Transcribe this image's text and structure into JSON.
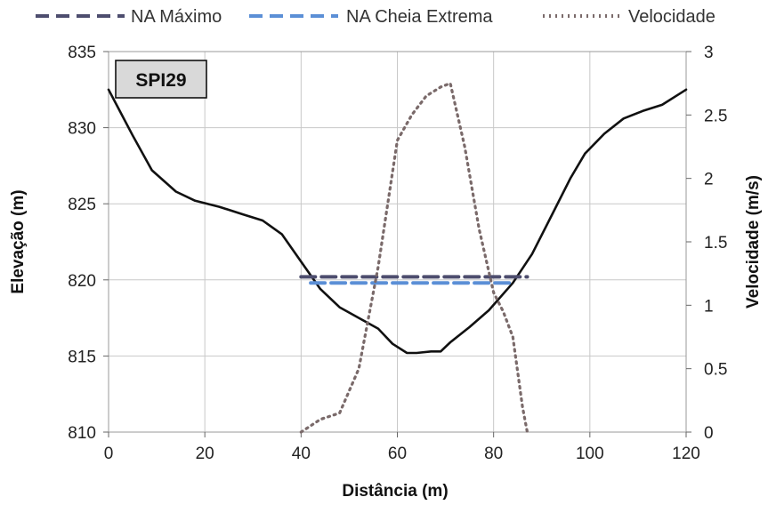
{
  "chart_data": {
    "type": "line",
    "label_box": "SPI29",
    "xlabel": "Distância (m)",
    "ylabel": "Elevação (m)",
    "y2label": "Velocidade (m/s)",
    "xlim": [
      0,
      120
    ],
    "ylim": [
      810,
      835
    ],
    "y2lim": [
      0,
      3
    ],
    "xticks": [
      0,
      20,
      40,
      60,
      80,
      100,
      120
    ],
    "yticks": [
      810,
      815,
      820,
      825,
      830,
      835
    ],
    "y2ticks": [
      0,
      0.5,
      1,
      1.5,
      2,
      2.5,
      3
    ],
    "y2ticklabels": [
      "0",
      "0.5",
      "1",
      "1.5",
      "2",
      "2.5",
      "3"
    ],
    "grid": true,
    "legend_position": "top",
    "legend": [
      {
        "label": "NA Máximo",
        "color": "#4d4d6e",
        "style": "dashed"
      },
      {
        "label": "NA Cheia Extrema",
        "color": "#5b8fd6",
        "style": "dashed"
      },
      {
        "label": "Velocidade",
        "color": "#7a6a6a",
        "style": "dotted"
      }
    ],
    "colors": {
      "terrain": "#111111",
      "na_max": "#4d4d6e",
      "na_cheia": "#5b8fd6",
      "velocidade": "#7a6a6a"
    },
    "series": [
      {
        "axis": "y",
        "x": [
          0,
          5,
          9,
          14,
          18,
          23,
          28,
          32,
          36,
          40,
          44,
          48,
          52,
          56,
          59,
          62,
          64,
          67,
          69,
          71,
          75,
          79,
          84,
          88,
          92,
          96,
          99,
          103,
          107,
          111,
          115,
          120
        ],
        "values": [
          832.5,
          829.5,
          827.2,
          825.8,
          825.2,
          824.8,
          824.3,
          823.9,
          823.0,
          821.2,
          819.4,
          818.2,
          817.5,
          816.8,
          815.8,
          815.2,
          815.2,
          815.3,
          815.3,
          815.9,
          816.9,
          818.0,
          819.8,
          821.7,
          824.2,
          826.7,
          828.3,
          829.6,
          830.6,
          831.1,
          831.5,
          832.5
        ]
      },
      {
        "name": "NA Máximo",
        "axis": "y",
        "x": [
          40,
          87
        ],
        "values": [
          820.2,
          820.2
        ]
      },
      {
        "name": "NA Cheia Extrema",
        "axis": "y",
        "x": [
          42,
          84
        ],
        "values": [
          819.8,
          819.8
        ]
      },
      {
        "name": "Velocidade",
        "axis": "y2",
        "x": [
          40,
          44,
          48,
          52,
          56,
          60,
          63,
          66,
          69,
          71,
          74,
          77,
          80,
          82,
          84,
          86,
          87
        ],
        "values": [
          0.0,
          0.1,
          0.15,
          0.5,
          1.3,
          2.3,
          2.5,
          2.65,
          2.72,
          2.75,
          2.25,
          1.6,
          1.1,
          0.95,
          0.75,
          0.2,
          0.0
        ]
      }
    ]
  }
}
